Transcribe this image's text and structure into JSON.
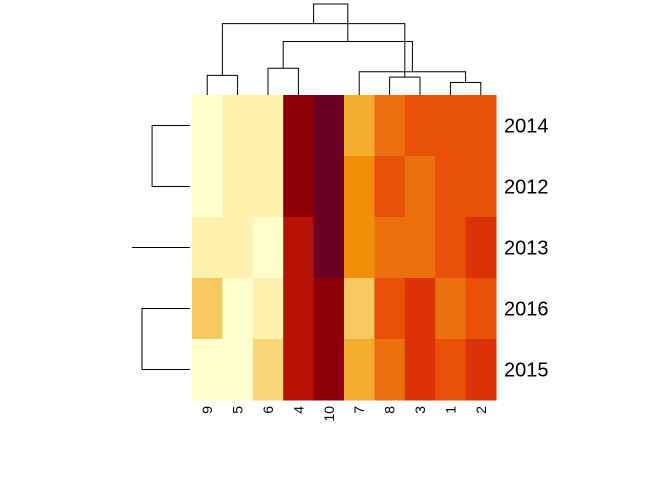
{
  "chart_data": {
    "type": "heatmap",
    "columns": [
      "9",
      "5",
      "6",
      "4",
      "10",
      "7",
      "8",
      "3",
      "1",
      "2"
    ],
    "rows": [
      "2014",
      "2012",
      "2013",
      "2016",
      "2015"
    ],
    "color_scale": [
      "#ffffcc",
      "#fff2ae",
      "#fee59a",
      "#f9d57a",
      "#f6c85f",
      "#f3ad2f",
      "#f08e0a",
      "#ec700d",
      "#e85008",
      "#dc3207",
      "#b81208",
      "#8e0008",
      "#6a0022"
    ],
    "cells": [
      [
        0,
        1,
        1,
        11,
        12,
        5,
        7,
        8,
        8,
        8
      ],
      [
        0,
        1,
        1,
        11,
        12,
        6,
        8,
        7,
        8,
        8
      ],
      [
        1,
        1,
        0,
        10,
        12,
        6,
        7,
        7,
        8,
        9
      ],
      [
        4,
        0,
        1,
        10,
        11,
        4,
        8,
        9,
        7,
        8
      ],
      [
        0,
        0,
        3,
        10,
        11,
        5,
        7,
        9,
        8,
        9
      ]
    ],
    "col_dendrogram": [
      [
        0,
        1,
        1
      ],
      [
        -3,
        -4,
        1.5
      ],
      [
        -7,
        -8,
        1
      ],
      [
        -10,
        -9,
        0.7
      ],
      [
        -6,
        4,
        1.3
      ],
      [
        -1,
        -2,
        1.1
      ],
      [
        6,
        3,
        4
      ],
      [
        2,
        5,
        3
      ],
      [
        8,
        7,
        5.1
      ]
    ],
    "row_dendrogram": [
      [
        0,
        1,
        1.6
      ],
      [
        -1,
        -2,
        1.5
      ],
      [
        -3,
        1,
        2.3
      ],
      [
        -4,
        -5,
        1.9
      ],
      [
        3,
        2,
        3.6
      ]
    ]
  }
}
